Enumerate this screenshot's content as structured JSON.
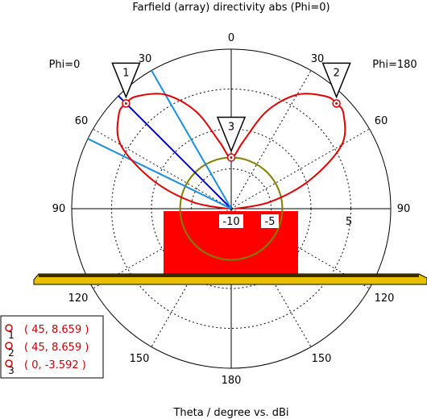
{
  "chart_data": {
    "type": "polar",
    "title": "Farfield (array) directivity abs (Phi=0)",
    "xlabel": "Theta / degree vs. dBi",
    "left_label": "Phi=0",
    "right_label": "Phi=180",
    "theta_ticks": [
      "0",
      "30",
      "30",
      "60",
      "60",
      "90",
      "90",
      "120",
      "120",
      "150",
      "150",
      "180"
    ],
    "radial_ticks": [
      "-10",
      "-5",
      "5"
    ],
    "radial_range_dBi": [
      -10,
      10
    ],
    "grid": true,
    "series": [
      {
        "name": "",
        "color": "#e00000",
        "theta_deg": [
          0,
          10,
          20,
          30,
          40,
          45,
          50,
          60,
          70,
          80,
          90
        ],
        "directivity_dBi": [
          -3.592,
          -1.5,
          3.0,
          6.5,
          8.4,
          8.659,
          8.4,
          6.0,
          0.5,
          -5.0,
          -9.5
        ]
      }
    ],
    "beam_lines": [
      {
        "color": "#0000cc",
        "theta_deg": 45
      },
      {
        "color": "#1a8fe0",
        "theta_deg": 30
      },
      {
        "color": "#1a8fe0",
        "theta_deg": 64
      }
    ],
    "reference_circle": {
      "color": "#808000",
      "value_dBi": -3.592
    },
    "markers": [
      {
        "id": "1",
        "label": "( 45, 8.659 )",
        "theta_deg": 45,
        "value_dBi": 8.659,
        "side": "left"
      },
      {
        "id": "2",
        "label": "( 45, 8.659 )",
        "theta_deg": 45,
        "value_dBi": 8.659,
        "side": "right"
      },
      {
        "id": "3",
        "label": "( 0, -3.592 )",
        "theta_deg": 0,
        "value_dBi": -3.592,
        "side": "center"
      }
    ]
  },
  "colors": {
    "pattern": "#e00000",
    "antenna_body": "#ff0000",
    "ground_plane": "#e8c000",
    "ground_edge": "#000000",
    "marker_text": "#d00000"
  }
}
